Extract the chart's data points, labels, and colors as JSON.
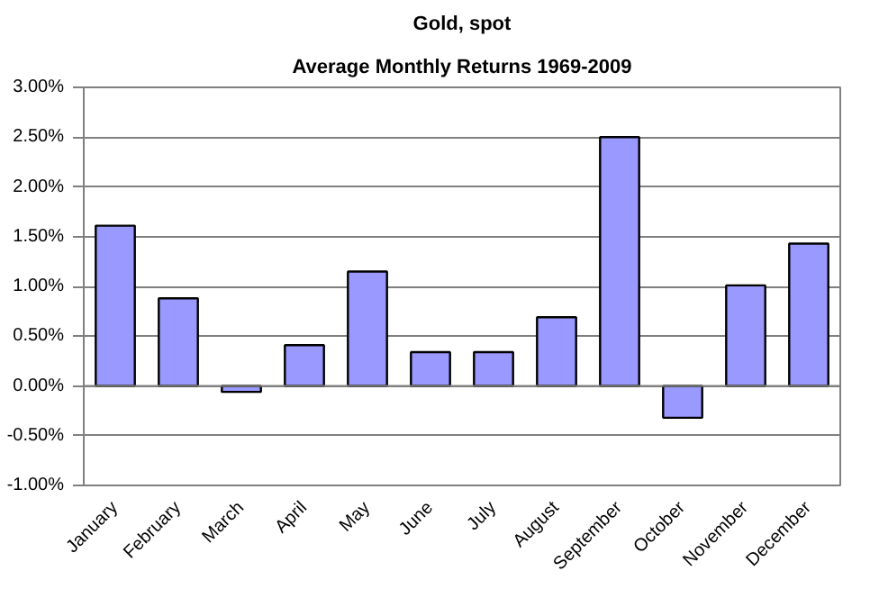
{
  "chart_data": {
    "type": "bar",
    "title": "Gold, spot",
    "subtitle": "Average Monthly Returns 1969-2009",
    "categories": [
      "January",
      "February",
      "March",
      "April",
      "May",
      "June",
      "July",
      "August",
      "September",
      "October",
      "November",
      "December"
    ],
    "values": [
      1.61,
      0.88,
      -0.06,
      0.41,
      1.15,
      0.34,
      0.34,
      0.69,
      2.5,
      -0.32,
      1.01,
      1.43
    ],
    "color": "#9999ff",
    "ylim": [
      -1,
      3
    ],
    "yticks": [
      {
        "value": -1,
        "label": "-1.00%"
      },
      {
        "value": -0.5,
        "label": "-0.50%"
      },
      {
        "value": 0,
        "label": "0.00%"
      },
      {
        "value": 0.5,
        "label": "0.50%"
      },
      {
        "value": 1,
        "label": "1.00%"
      },
      {
        "value": 1.5,
        "label": "1.50%"
      },
      {
        "value": 2,
        "label": "2.00%"
      },
      {
        "value": 2.5,
        "label": "2.50%"
      },
      {
        "value": 3,
        "label": "3.00%"
      }
    ],
    "grid": "y"
  }
}
